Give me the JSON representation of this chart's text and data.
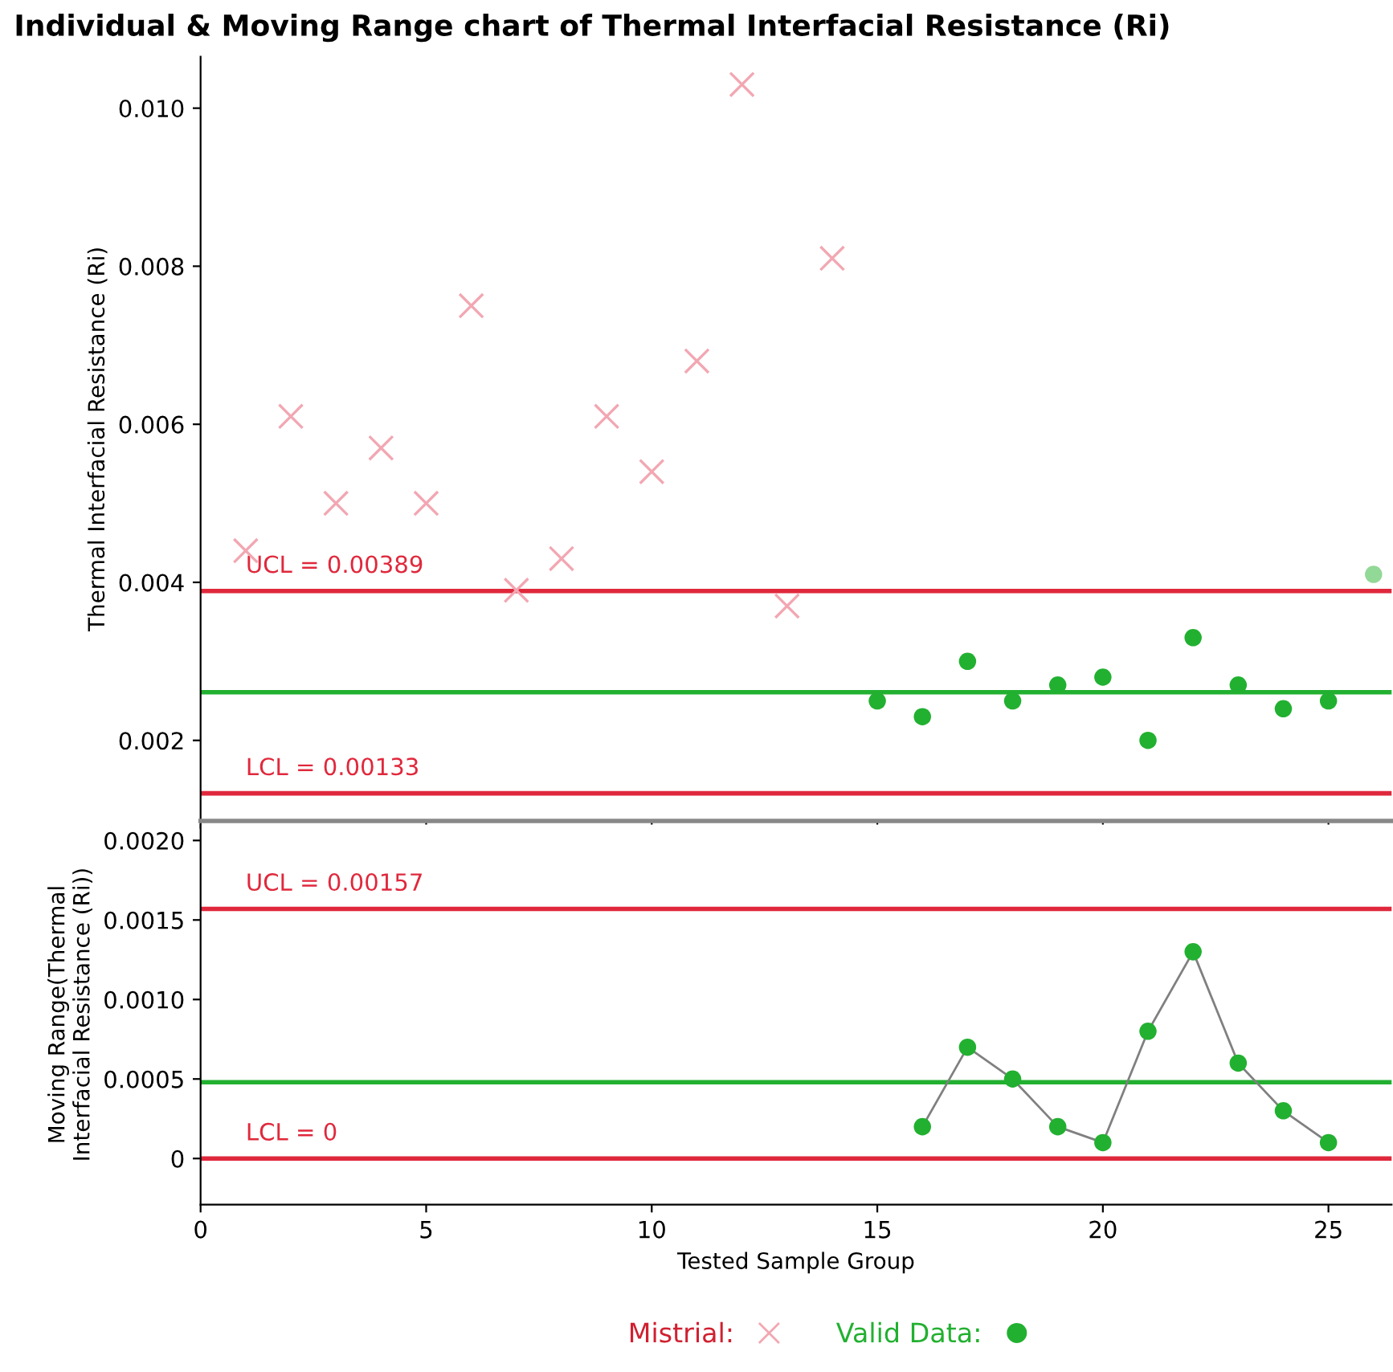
{
  "chart_data": [
    {
      "type": "scatter",
      "title": "Individual & Moving Range chart of Thermal Interfacial Resistance (Ri)",
      "ylabel": "Thermal Interfacial Resistance (Ri)",
      "xlim": [
        0,
        26.4
      ],
      "xticks": [
        0,
        5,
        10,
        15,
        20,
        25
      ],
      "ylim": [
        0.00098,
        0.01065
      ],
      "yticks": [
        {
          "value": 0.002,
          "label": "0.002"
        },
        {
          "value": 0.004,
          "label": "0.004"
        },
        {
          "value": 0.006,
          "label": "0.006"
        },
        {
          "value": 0.008,
          "label": "0.008"
        },
        {
          "value": 0.01,
          "label": "0.010"
        }
      ],
      "tick_labels": "y",
      "grid": false,
      "legend": "bottom",
      "series": [
        {
          "name": "Mistrial:",
          "color": "#f2a7b2",
          "marker": "cross",
          "x": [
            1,
            2,
            3,
            4,
            5,
            6,
            7,
            8,
            9,
            10,
            11,
            12,
            13,
            14
          ],
          "values": [
            0.0044,
            0.0061,
            0.005,
            0.0057,
            0.005,
            0.0075,
            0.0039,
            0.0043,
            0.0061,
            0.0054,
            0.0068,
            0.0103,
            0.0037,
            0.0081
          ]
        },
        {
          "name": "Valid Data:",
          "color": "#22b030",
          "marker": "circle",
          "x": [
            15,
            16,
            17,
            18,
            19,
            20,
            21,
            22,
            23,
            24,
            25
          ],
          "values": [
            0.0025,
            0.0023,
            0.003,
            0.0025,
            0.0027,
            0.0028,
            0.002,
            0.0033,
            0.0027,
            0.0024,
            0.0025
          ]
        },
        {
          "color": "#92d896",
          "marker": "circle",
          "x": [
            26
          ],
          "values": [
            0.0041
          ]
        }
      ],
      "ref_lines": [
        {
          "axis": "y",
          "value": 0.00389,
          "label": "UCL = 0.00389",
          "color": "#e0283c"
        },
        {
          "axis": "y",
          "value": 0.00261,
          "label": null,
          "color": "#22b030"
        },
        {
          "axis": "y",
          "value": 0.00133,
          "label": "LCL = 0.00133",
          "color": "#e0283c"
        }
      ]
    },
    {
      "type": "line",
      "xlabel": "Tested Sample Group",
      "ylabel": "Moving Range(Thermal\nInterfacial Resistance (Ri))",
      "xlim": [
        0,
        26.4
      ],
      "xticks": [
        0,
        5,
        10,
        15,
        20,
        25
      ],
      "ylim": [
        -0.00029,
        0.0021
      ],
      "yticks": [
        0,
        {
          "value": 0.0005,
          "label": "0.0005"
        },
        {
          "value": 0.001,
          "label": "0.0010"
        },
        {
          "value": 0.0015,
          "label": "0.0015"
        },
        {
          "value": 0.002,
          "label": "0.0020"
        }
      ],
      "grid": false,
      "series": [
        {
          "color": "#808080",
          "colors": [
            "#22b030",
            "#22b030",
            "#22b030",
            "#22b030",
            "#22b030",
            "#22b030",
            "#22b030",
            "#22b030",
            "#22b030",
            "#22b030"
          ],
          "marker": "circle",
          "x": [
            16,
            17,
            18,
            19,
            20,
            21,
            22,
            23,
            24,
            25
          ],
          "values": [
            0.0002,
            0.0007,
            0.0005,
            0.0002,
            0.0001,
            0.0008,
            0.0013,
            0.0006,
            0.0003,
            0.0001
          ]
        }
      ],
      "ref_lines": [
        {
          "axis": "y",
          "value": 0.00157,
          "label": "UCL = 0.00157",
          "color": "#e0283c"
        },
        {
          "axis": "y",
          "value": 0.00048,
          "label": null,
          "color": "#22b030"
        },
        {
          "axis": "y",
          "value": 0,
          "label": "LCL = 0",
          "color": "#e0283c"
        }
      ]
    }
  ]
}
